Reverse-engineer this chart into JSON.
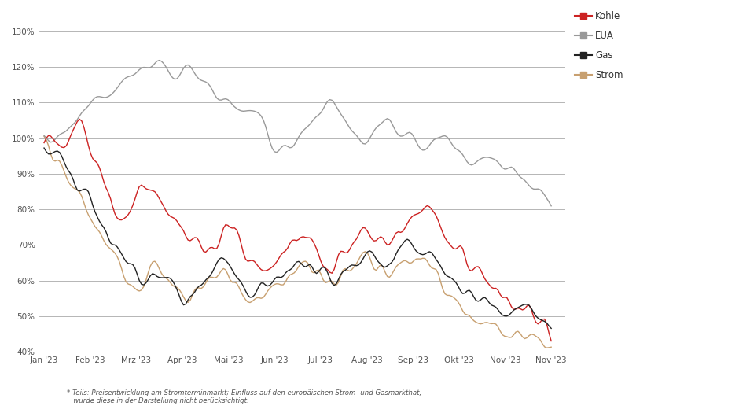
{
  "ylim": [
    40,
    135
  ],
  "yticks": [
    40,
    50,
    60,
    70,
    80,
    90,
    100,
    110,
    120,
    130
  ],
  "ytick_labels": [
    "40%",
    "50%",
    "60%",
    "70%",
    "80%",
    "90%",
    "100%",
    "110%",
    "120%",
    "130%"
  ],
  "x_labels": [
    "Jan '23",
    "Feb '23",
    "Mrz '23",
    "Apr '23",
    "Mai '23",
    "Jun '23",
    "Jul '23",
    "Aug '23",
    "Sep '23",
    "Okt '23",
    "Nov '23",
    "Nov '23"
  ],
  "footnote_line1": "* Teils: Preisentwicklung am Stromterminmarkt; Einfluss auf den europäischen Strom- und Gasmarkthat,",
  "footnote_line2": "   wurde diese in der Darstellung nicht berücksichtigt.",
  "series_colors": {
    "Kohle": "#cc2222",
    "EUA": "#999999",
    "Gas": "#222222",
    "Strom": "#c8a070"
  },
  "linewidth": 1.0,
  "background_color": "#ffffff",
  "grid_color": "#aaaaaa"
}
